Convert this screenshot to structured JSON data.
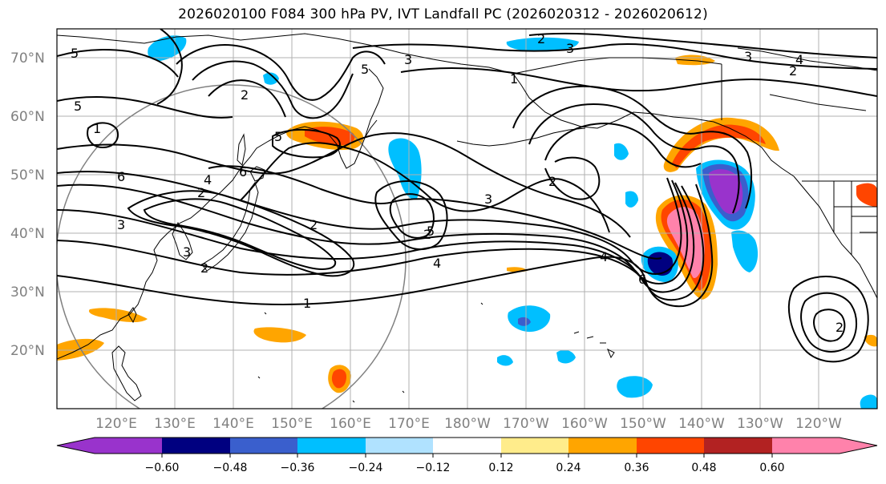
{
  "title": "2026020100 F084 300 hPa PV, IVT Landfall PC (2026020312 - 2026020612)",
  "lat_labels": [
    "70°N",
    "60°N",
    "50°N",
    "40°N",
    "30°N",
    "20°N"
  ],
  "lon_labels": [
    "120°E",
    "130°E",
    "140°E",
    "150°E",
    "160°E",
    "170°E",
    "180°W",
    "170°W",
    "160°W",
    "150°W",
    "140°W",
    "130°W",
    "120°W"
  ],
  "colorbar": {
    "ticks": [
      "−0.60",
      "−0.48",
      "−0.36",
      "−0.24",
      "−0.12",
      "0.12",
      "0.24",
      "0.36",
      "0.48",
      "0.60"
    ],
    "colors": [
      "#9933cc",
      "#000080",
      "#3a5fcd",
      "#00bfff",
      "#b0e2ff",
      "#ffffff",
      "#ffec8b",
      "#ffa500",
      "#ff4500",
      "#b22222",
      "#ff82ab"
    ]
  },
  "pv_contour_labels": [
    "5",
    "5",
    "1",
    "6",
    "5",
    "2",
    "5",
    "2",
    "4",
    "2",
    "6",
    "3",
    "2",
    "3",
    "3",
    "2",
    "1",
    "4",
    "5",
    "3",
    "2",
    "4",
    "6",
    "3",
    "2",
    "2",
    "3",
    "4",
    "2",
    "1"
  ],
  "colors": {
    "coast": "#000000",
    "grid": "#b0b0b0",
    "contour": "#000000",
    "circle": "#808080"
  }
}
